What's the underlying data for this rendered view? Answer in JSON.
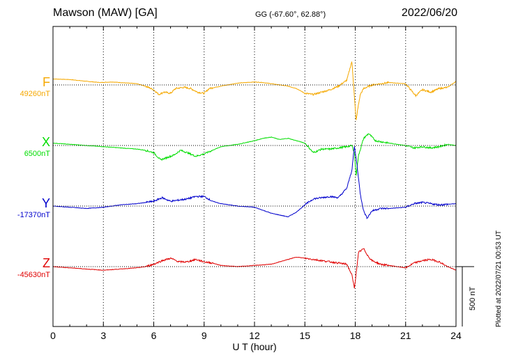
{
  "header": {
    "station": "Mawson (MAW)  [GA]",
    "coords": "GG (-67.60°,  62.88°)",
    "date": "2022/06/20"
  },
  "plotted_note": "Plotted at 2022/07/21 00:53 UT",
  "scale_label": "500 nT",
  "colors": {
    "F": "#f5a800",
    "X": "#00dd00",
    "Y": "#0000cc",
    "Z": "#e00000"
  },
  "chart_data": {
    "type": "line",
    "title": "Mawson (MAW)  [GA]",
    "xlabel": "U T (hour)",
    "xlim": [
      0,
      24
    ],
    "x_ticks": [
      0,
      3,
      6,
      9,
      12,
      15,
      18,
      21,
      24
    ],
    "grid": true,
    "scale_bar_nT": 500,
    "series": [
      {
        "name": "F",
        "baseline_label": "49260nT",
        "unit": "nT",
        "x": [
          0,
          1,
          2,
          2.8,
          3.5,
          4.5,
          5,
          5.5,
          6,
          6.3,
          6.6,
          7,
          7.3,
          7.8,
          8.2,
          8.6,
          9,
          9.3,
          10,
          11,
          12,
          12.5,
          13,
          13.5,
          14,
          14.5,
          15,
          15.5,
          16,
          16.5,
          17,
          17.5,
          17.8,
          17.95,
          18.05,
          18.15,
          18.3,
          18.5,
          19,
          20,
          21,
          21.3,
          21.6,
          22,
          22.5,
          23,
          23.5,
          24
        ],
        "values": [
          50,
          45,
          30,
          20,
          25,
          15,
          10,
          -10,
          -40,
          -80,
          -60,
          -70,
          -30,
          -20,
          -30,
          -60,
          -70,
          -30,
          -10,
          15,
          25,
          20,
          10,
          0,
          -10,
          -30,
          -70,
          -80,
          -60,
          -40,
          -10,
          40,
          200,
          -100,
          -300,
          -200,
          -80,
          -30,
          0,
          20,
          10,
          -40,
          -90,
          -40,
          -60,
          -30,
          -20,
          30
        ]
      },
      {
        "name": "X",
        "baseline_label": "6500nT",
        "unit": "nT",
        "x": [
          0,
          1,
          2,
          3,
          4,
          5,
          5.5,
          6,
          6.4,
          6.8,
          7.2,
          7.6,
          8,
          8.5,
          9,
          9.5,
          10,
          11,
          12,
          12.5,
          13,
          13.5,
          14,
          14.5,
          15,
          15.5,
          16,
          16.5,
          17,
          17.5,
          17.8,
          17.95,
          18.05,
          18.2,
          18.5,
          18.8,
          19.2,
          20,
          21,
          21.5,
          22,
          22.5,
          23,
          23.5,
          24
        ],
        "values": [
          20,
          10,
          0,
          -10,
          -20,
          -30,
          -40,
          -60,
          -120,
          -100,
          -80,
          -40,
          -60,
          -90,
          -70,
          -40,
          -10,
          10,
          40,
          60,
          70,
          50,
          60,
          40,
          20,
          -60,
          -30,
          -30,
          -20,
          -10,
          0,
          -60,
          -250,
          -80,
          60,
          100,
          40,
          20,
          0,
          -20,
          -10,
          -20,
          -10,
          10,
          0
        ]
      },
      {
        "name": "Y",
        "baseline_label": "-17370nT",
        "unit": "nT",
        "x": [
          0,
          1,
          2,
          3,
          4,
          5,
          6,
          6.5,
          7,
          7.5,
          8,
          8.5,
          9,
          9.5,
          10,
          11,
          12,
          13,
          14,
          14.5,
          15,
          15.5,
          16,
          16.5,
          17,
          17.5,
          17.8,
          17.95,
          18.1,
          18.3,
          18.5,
          18.7,
          19,
          19.5,
          20,
          21,
          21.5,
          22,
          23,
          24
        ],
        "values": [
          0,
          -10,
          -20,
          -10,
          10,
          20,
          40,
          70,
          40,
          50,
          60,
          80,
          80,
          40,
          20,
          0,
          -10,
          -60,
          -90,
          -50,
          10,
          60,
          70,
          80,
          70,
          150,
          300,
          500,
          350,
          100,
          -40,
          -100,
          -40,
          -20,
          -20,
          -10,
          20,
          30,
          10,
          20
        ]
      },
      {
        "name": "Z",
        "baseline_label": "-45630nT",
        "unit": "nT",
        "x": [
          0,
          1,
          2,
          3,
          4,
          5,
          5.5,
          6,
          6.5,
          7,
          7.5,
          8,
          8.5,
          9,
          9.5,
          10,
          11,
          12,
          13,
          14,
          14.5,
          15,
          15.5,
          16,
          16.5,
          17,
          17.5,
          17.8,
          17.95,
          18.05,
          18.2,
          18.5,
          18.8,
          19,
          19.5,
          20,
          21,
          21.5,
          22,
          22.5,
          23,
          23.5,
          24
        ],
        "values": [
          0,
          -10,
          -20,
          -30,
          -20,
          -10,
          0,
          20,
          50,
          70,
          40,
          40,
          60,
          40,
          30,
          10,
          0,
          10,
          20,
          60,
          80,
          70,
          60,
          50,
          40,
          30,
          20,
          -70,
          -180,
          -60,
          120,
          150,
          80,
          50,
          20,
          10,
          -10,
          30,
          50,
          60,
          40,
          0,
          -30
        ]
      }
    ]
  }
}
